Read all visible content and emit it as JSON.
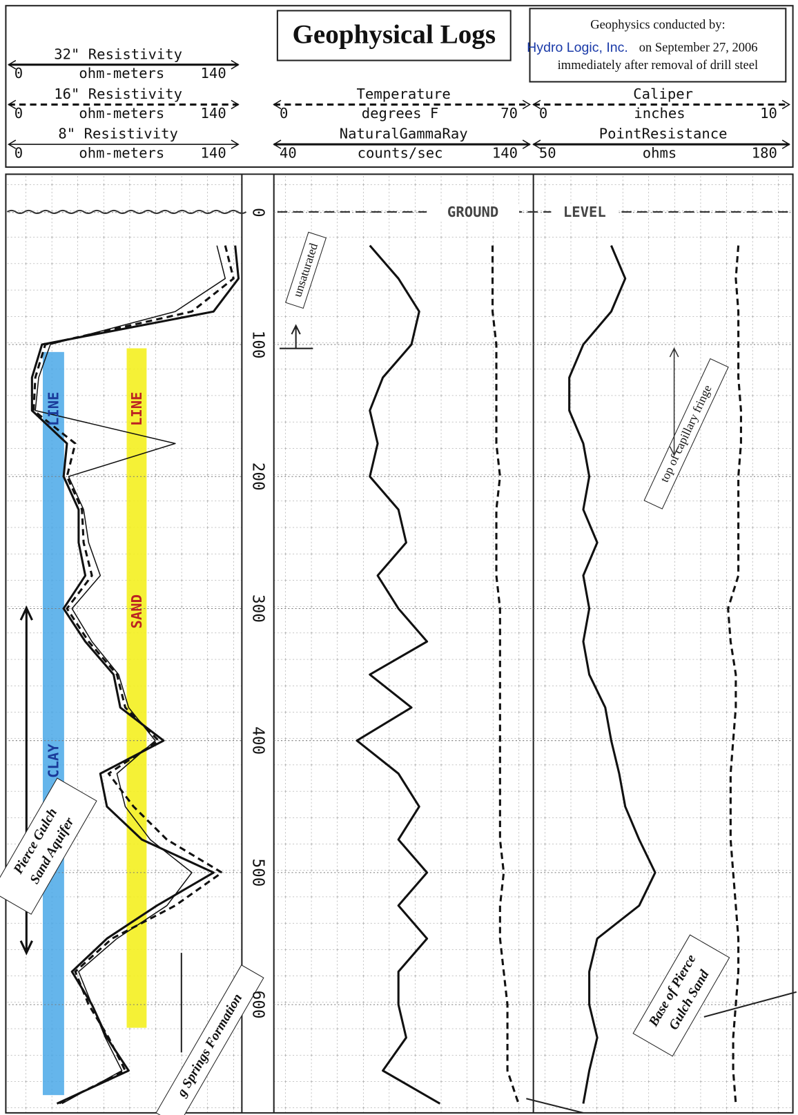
{
  "chart_data": {
    "type": "well-log",
    "title": "Geophysical Logs",
    "credit": {
      "heading": "Geophysics conducted by:",
      "company": "Hydro Logic, Inc.",
      "date": "on September 27, 2006",
      "note": "immediately after removal of drill steel"
    },
    "depth": [
      25,
      50,
      75,
      100,
      125,
      150,
      175,
      200,
      225,
      250,
      275,
      300,
      325,
      350,
      375,
      400,
      425,
      450,
      475,
      500,
      525,
      550,
      575,
      600,
      625,
      650,
      675
    ],
    "ylim": [
      -29,
      682
    ],
    "yticks": [
      0,
      100,
      200,
      300,
      400,
      500,
      600
    ],
    "grid": true,
    "tracks": [
      {
        "series": [
          {
            "name": "32\" Resistivity",
            "unit": "ohm-meters",
            "xlim": [
              0,
              140
            ],
            "color": "#111",
            "style": "solid-thick",
            "values": [
              136,
              138,
              123,
              20,
              14,
              14,
              35,
              33,
              42,
              42,
              46,
              33,
              46,
              63,
              67,
              93,
              55,
              59,
              80,
              123,
              89,
              59,
              38,
              50,
              59,
              72,
              29
            ]
          },
          {
            "name": "16\" Resistivity",
            "unit": "ohm-meters",
            "xlim": [
              0,
              140
            ],
            "color": "#111",
            "style": "dashed",
            "values": [
              130,
              135,
              110,
              22,
              16,
              15,
              40,
              35,
              44,
              45,
              50,
              35,
              48,
              65,
              70,
              90,
              60,
              75,
              95,
              128,
              100,
              62,
              40,
              48,
              60,
              70,
              30
            ]
          },
          {
            "name": "8\" Resistivity",
            "unit": "ohm-meters",
            "xlim": [
              0,
              140
            ],
            "color": "#111",
            "style": "solid-thin",
            "values": [
              125,
              130,
              100,
              25,
              18,
              16,
              100,
              36,
              45,
              48,
              55,
              38,
              50,
              66,
              72,
              88,
              65,
              70,
              85,
              110,
              95,
              65,
              42,
              50,
              58,
              68,
              32
            ]
          }
        ]
      },
      {
        "series": [
          {
            "name": "Temperature",
            "unit": "degrees F",
            "xlim": [
              0,
              70
            ],
            "color": "#111",
            "style": "dashed",
            "values": [
              59,
              59,
              59,
              60,
              60,
              60,
              60,
              61,
              60,
              60,
              60,
              61,
              61,
              61,
              61,
              61,
              61,
              61,
              61,
              62,
              61,
              61,
              62,
              63,
              63,
              63,
              66
            ]
          },
          {
            "name": "NaturalGammaRay",
            "unit": "counts/sec",
            "xlim": [
              40,
              140
            ],
            "color": "#111",
            "style": "solid-thick",
            "values": [
              77,
              88,
              96,
              93,
              82,
              77,
              80,
              77,
              88,
              91,
              80,
              88,
              99,
              77,
              93,
              72,
              88,
              96,
              88,
              99,
              88,
              99,
              88,
              88,
              91,
              82,
              104
            ]
          }
        ]
      },
      {
        "series": [
          {
            "name": "Caliper",
            "unit": "inches",
            "xlim": [
              0,
              10
            ],
            "color": "#111",
            "style": "dashed",
            "values": [
              7.9,
              7.8,
              7.9,
              7.9,
              7.9,
              8.0,
              8.0,
              7.9,
              7.9,
              7.9,
              7.9,
              7.5,
              7.6,
              7.8,
              7.8,
              7.7,
              7.6,
              7.6,
              7.6,
              7.7,
              7.8,
              7.9,
              7.9,
              7.8,
              7.7,
              7.7,
              7.8
            ]
          },
          {
            "name": "PointResistance",
            "unit": "ohms",
            "xlim": [
              50,
              180
            ],
            "color": "#111",
            "style": "solid-thick",
            "values": [
              89,
              96,
              89,
              75,
              68,
              68,
              75,
              78,
              75,
              82,
              75,
              78,
              75,
              78,
              86,
              89,
              93,
              96,
              103,
              111,
              103,
              82,
              78,
              78,
              82,
              78,
              75
            ]
          }
        ]
      }
    ],
    "annotations": [
      "GROUND",
      "LEVEL",
      "CLAY",
      "LINE",
      "SAND",
      "LINE",
      "unsaturated",
      "top of capillary fringe",
      "Pierce Gulch",
      "Sand Aquifer",
      "g Springs Formation",
      "Base of Pierce",
      "Gulch Sand"
    ]
  }
}
